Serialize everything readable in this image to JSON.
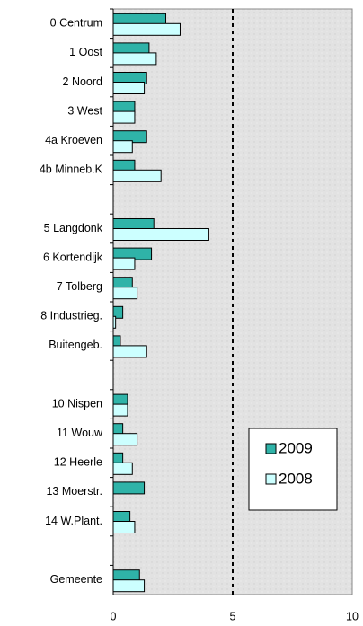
{
  "chart_data": {
    "type": "bar",
    "orientation": "horizontal",
    "categories": [
      "0 Centrum",
      "1 Oost",
      "2 Noord",
      "3 West",
      "4a Kroeven",
      "4b Minneb.K",
      null,
      "5 Langdonk",
      "6 Kortendijk",
      "7 Tolberg",
      "8 Industrieg.",
      "Buitengeb.",
      null,
      "10 Nispen",
      "11 Wouw",
      "12 Heerle",
      "13 Moerstr.",
      "14 W.Plant.",
      null,
      "Gemeente"
    ],
    "series": [
      {
        "name": "2009",
        "color": "#2fb3a8",
        "values": [
          2.2,
          1.5,
          1.4,
          0.9,
          1.4,
          0.9,
          null,
          1.7,
          1.6,
          0.8,
          0.4,
          0.3,
          null,
          0.6,
          0.4,
          0.4,
          1.3,
          0.7,
          null,
          1.1
        ]
      },
      {
        "name": "2008",
        "color": "#ccffff",
        "values": [
          2.8,
          1.8,
          1.3,
          0.9,
          0.8,
          2.0,
          null,
          4.0,
          0.9,
          1.0,
          0.1,
          1.4,
          null,
          0.6,
          1.0,
          0.8,
          null,
          0.9,
          null,
          1.3
        ]
      }
    ],
    "xlim": [
      0,
      10
    ],
    "xticks": [
      0,
      5,
      10
    ],
    "grid": true,
    "legend": "lower right"
  }
}
